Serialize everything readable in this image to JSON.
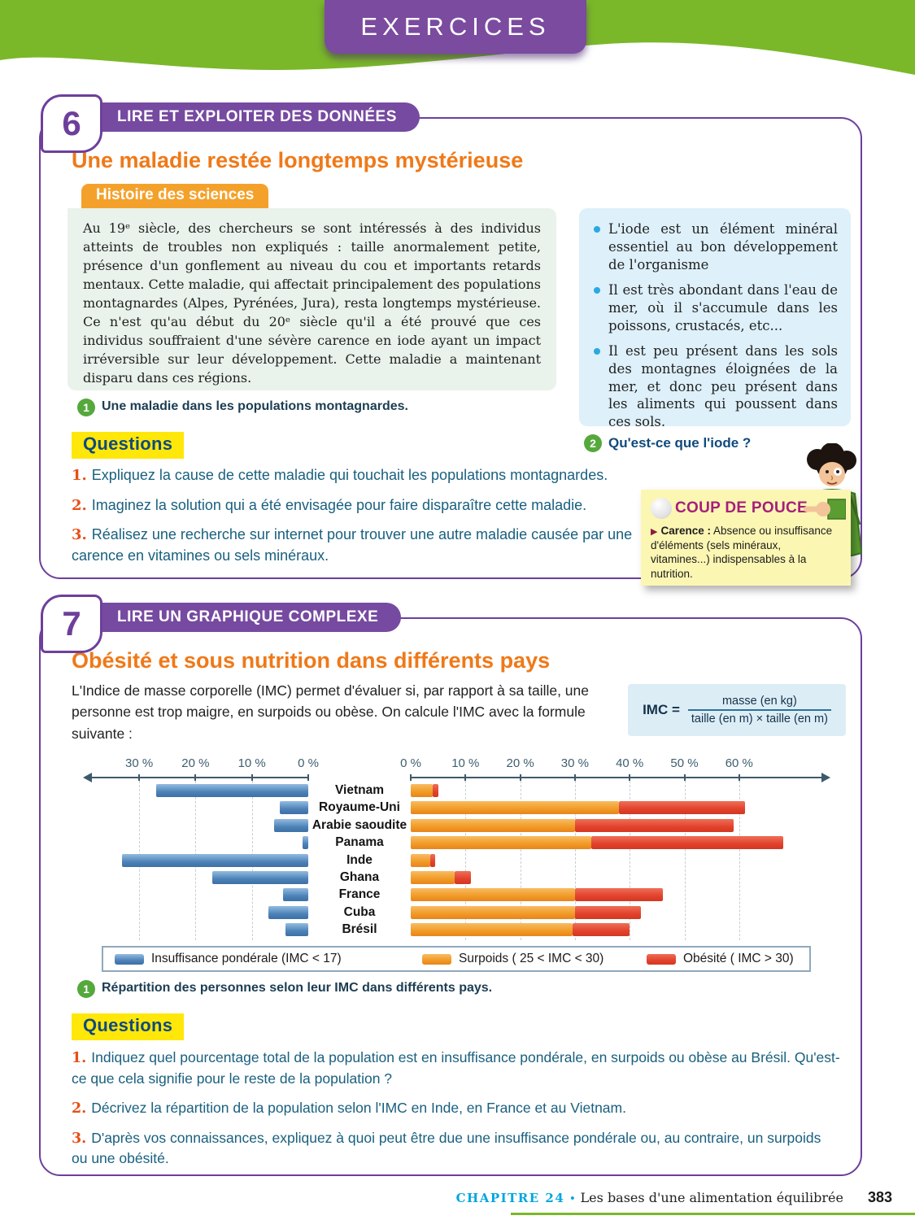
{
  "banner": {
    "title": "EXERCICES"
  },
  "colors": {
    "banner_green": "#7ab829",
    "purple": "#6d3f9b",
    "orange_title": "#ef7918",
    "badge_orange": "#f4a12b",
    "doc_green_bg": "#e9f2eb",
    "doc_blue_bg": "#def0fa",
    "bullet_cyan": "#2aa9e0",
    "caption_green": "#55a83c",
    "questions_yellow": "#ffe70a",
    "question_text_blue": "#19607f",
    "question_num_orange": "#e84e17",
    "coup_title_magenta": "#a51f7a",
    "footer_cyan": "#00a5df",
    "bar_blue": "#4d82b8",
    "bar_orange": "#f19a26",
    "bar_red": "#e2422c"
  },
  "exercise6": {
    "number": "6",
    "skill": "LIRE ET EXPLOITER DES DONNÉES",
    "title": "Une maladie restée longtemps mystérieuse",
    "doc_badge": "Histoire des sciences",
    "doc_text": "Au 19ᵉ siècle, des chercheurs se sont intéressés à des individus atteints de troubles non expliqués : taille anormalement petite, présence d'un gonflement au niveau du cou et importants retards mentaux. Cette maladie, qui affectait principalement des populations montagnardes (Alpes, Pyrénées, Jura), resta longtemps mystérieuse. Ce n'est qu'au début du 20ᵉ siècle qu'il a été prouvé que ces individus souffraient d'une sévère carence en iode ayant un impact irréversible sur leur développement. Cette maladie a maintenant disparu dans ces régions.",
    "doc_caption": {
      "num": "1",
      "text": "Une maladie dans les populations montagnardes."
    },
    "info_box": {
      "bullets": [
        "L'iode est un élément minéral essentiel au bon développement de l'organisme",
        "Il est très abondant dans l'eau de mer, où il s'accumule dans les poissons, crustacés, etc...",
        "Il est peu présent dans les sols des montagnes éloignées de la mer, et donc peu présent dans les aliments qui poussent dans ces sols."
      ]
    },
    "info_caption": {
      "num": "2",
      "text": "Qu'est-ce que l'iode ?"
    },
    "questions_label": "Questions",
    "questions": [
      {
        "num": "1.",
        "text": "Expliquez la cause de cette maladie qui touchait les populations montagnardes."
      },
      {
        "num": "2.",
        "text": "Imaginez la solution qui a été envisagée pour faire disparaître cette maladie."
      },
      {
        "num": "3.",
        "text": "Réalisez une recherche sur internet pour trouver une autre maladie causée par une carence en vitamines ou sels minéraux."
      }
    ],
    "coup_de_pouce": {
      "title": "COUP DE POUCE",
      "arrow": "▶",
      "term": "Carence :",
      "definition": "Absence ou insuffisance d'éléments (sels minéraux, vitamines...) indispensables à la nutrition."
    }
  },
  "exercise7": {
    "number": "7",
    "skill": "LIRE UN GRAPHIQUE COMPLEXE",
    "title": "Obésité et sous nutrition dans différents pays",
    "intro": "L'Indice de masse corporelle (IMC) permet d'évaluer si, par rapport à sa taille, une personne est trop maigre, en surpoids ou obèse. On calcule l'IMC avec la formule suivante :",
    "formula": {
      "lhs": "IMC =",
      "numerator": "masse (en kg)",
      "denominator": "taille (en m) × taille (en m)"
    },
    "chart_data": {
      "type": "bar",
      "orientation": "horizontal-diverging",
      "title": "Répartition des personnes selon leur IMC dans différents pays.",
      "unit": "%",
      "categories": [
        "Vietnam",
        "Royaume-Uni",
        "Arabie saoudite",
        "Panama",
        "Inde",
        "Ghana",
        "France",
        "Cuba",
        "Brésil"
      ],
      "series": [
        {
          "name": "Insuffisance pondérale (IMC < 17)",
          "side": "left",
          "color": "#4d82b8",
          "values": [
            27,
            5,
            6,
            1,
            33,
            17,
            4.5,
            7,
            4
          ]
        },
        {
          "name": "Surpoids ( 25 < IMC < 30)",
          "side": "right",
          "color": "#f19a26",
          "values": [
            4,
            38,
            30,
            33,
            3.5,
            8,
            30,
            30,
            29.5
          ]
        },
        {
          "name": "Obésité ( IMC > 30)",
          "side": "right",
          "color": "#e2422c",
          "values": [
            1,
            23,
            29,
            35,
            1,
            3,
            16,
            12,
            10.5
          ]
        }
      ],
      "left_axis": {
        "ticks": [
          "30 %",
          "20 %",
          "10 %",
          "0 %"
        ],
        "max": 35
      },
      "right_axis": {
        "ticks": [
          "0 %",
          "10 %",
          "20 %",
          "30 %",
          "40 %",
          "50 %",
          "60 %"
        ],
        "max": 70
      },
      "grid": "dashed-vertical",
      "legend_position": "bottom"
    },
    "caption": {
      "num": "1",
      "text": "Répartition des personnes selon leur IMC dans différents pays."
    },
    "questions_label": "Questions",
    "questions": [
      {
        "num": "1.",
        "text": "Indiquez quel pourcentage total de la population est en insuffisance pondérale, en surpoids ou obèse au Brésil. Qu'est-ce que cela signifie pour le reste de la population ?"
      },
      {
        "num": "2.",
        "text": "Décrivez la répartition de la population selon l'IMC en Inde, en France et au Vietnam."
      },
      {
        "num": "3.",
        "text": "D'après vos connaissances, expliquez à quoi peut être due une insuffisance pondérale ou, au contraire, un surpoids ou une obésité."
      }
    ]
  },
  "footer": {
    "chapter": "CHAPITRE 24",
    "separator": "•",
    "title": "Les bases d'une alimentation équilibrée",
    "page_number": "383"
  }
}
